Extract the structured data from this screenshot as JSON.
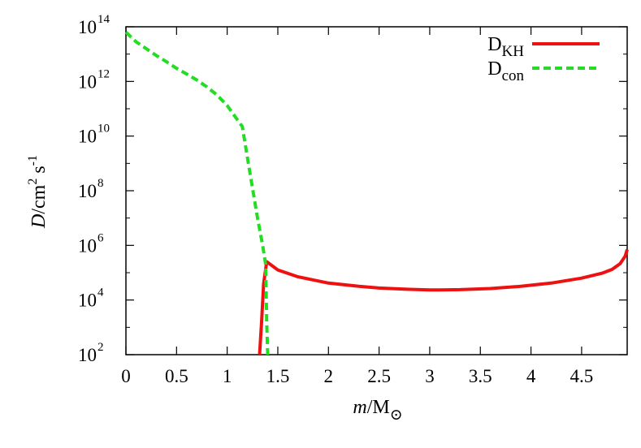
{
  "chart_data": {
    "type": "line",
    "title": "",
    "xlabel": {
      "main": "m",
      "unit": "/M",
      "sub": "⊙"
    },
    "ylabel": {
      "main": "D",
      "unit": "/cm",
      "sup1": "2",
      "mid": " s",
      "sup2": "-1"
    },
    "xlim": [
      0,
      4.95
    ],
    "ylim_exp": [
      2,
      14
    ],
    "y_scale": "log",
    "x_ticks": [
      {
        "v": 0,
        "label": "0"
      },
      {
        "v": 0.5,
        "label": "0.5"
      },
      {
        "v": 1,
        "label": "1"
      },
      {
        "v": 1.5,
        "label": "1.5"
      },
      {
        "v": 2,
        "label": "2"
      },
      {
        "v": 2.5,
        "label": "2.5"
      },
      {
        "v": 3,
        "label": "3"
      },
      {
        "v": 3.5,
        "label": "3.5"
      },
      {
        "v": 4,
        "label": "4"
      },
      {
        "v": 4.5,
        "label": "4.5"
      }
    ],
    "y_ticks": [
      {
        "e": 2,
        "base": "10",
        "exp": "2"
      },
      {
        "e": 4,
        "base": "10",
        "exp": "4"
      },
      {
        "e": 6,
        "base": "10",
        "exp": "6"
      },
      {
        "e": 8,
        "base": "10",
        "exp": "8"
      },
      {
        "e": 10,
        "base": "10",
        "exp": "10"
      },
      {
        "e": 12,
        "base": "10",
        "exp": "12"
      },
      {
        "e": 14,
        "base": "10",
        "exp": "14"
      }
    ],
    "legend_position": "top-right",
    "grid": false,
    "series": [
      {
        "name": "D",
        "name_sub": "KH",
        "color": "#ee1111",
        "dash": "solid",
        "points": [
          [
            1.32,
            2
          ],
          [
            1.34,
            3.2
          ],
          [
            1.36,
            4.6
          ],
          [
            1.39,
            5.4
          ],
          [
            1.5,
            5.1
          ],
          [
            1.7,
            4.85
          ],
          [
            2.0,
            4.62
          ],
          [
            2.3,
            4.5
          ],
          [
            2.5,
            4.44
          ],
          [
            2.8,
            4.39
          ],
          [
            3.0,
            4.37
          ],
          [
            3.1,
            4.37
          ],
          [
            3.3,
            4.38
          ],
          [
            3.6,
            4.42
          ],
          [
            3.9,
            4.5
          ],
          [
            4.2,
            4.62
          ],
          [
            4.5,
            4.8
          ],
          [
            4.7,
            4.98
          ],
          [
            4.8,
            5.12
          ],
          [
            4.88,
            5.33
          ],
          [
            4.93,
            5.6
          ],
          [
            4.95,
            5.85
          ]
        ]
      },
      {
        "name": "D",
        "name_sub": "con",
        "color": "#22dd22",
        "dash": "dashed",
        "points": [
          [
            0,
            13.8
          ],
          [
            0.1,
            13.45
          ],
          [
            0.2,
            13.2
          ],
          [
            0.3,
            12.95
          ],
          [
            0.4,
            12.72
          ],
          [
            0.5,
            12.48
          ],
          [
            0.6,
            12.27
          ],
          [
            0.7,
            12.05
          ],
          [
            0.8,
            11.8
          ],
          [
            0.9,
            11.5
          ],
          [
            1.0,
            11.12
          ],
          [
            1.1,
            10.6
          ],
          [
            1.15,
            10.35
          ],
          [
            1.2,
            9.2
          ],
          [
            1.25,
            8.1
          ],
          [
            1.3,
            7.0
          ],
          [
            1.35,
            6.0
          ],
          [
            1.38,
            5.3
          ],
          [
            1.39,
            3.2
          ],
          [
            1.4,
            2
          ]
        ]
      }
    ]
  }
}
